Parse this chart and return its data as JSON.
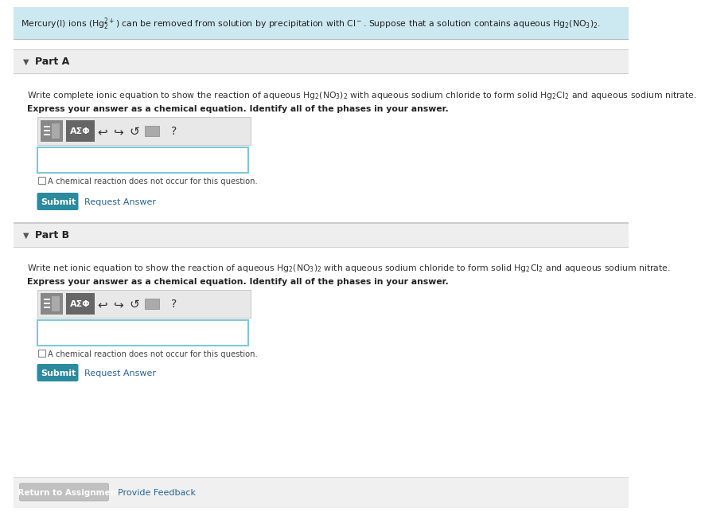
{
  "bg_color": "#ffffff",
  "header_bg": "#cce8f0",
  "header_text_plain": "Mercury(I) ions (",
  "header_text_formula1": "Hg",
  "header_text_mid": ") can be removed from solution by precipitation with Cl",
  "header_text_formula2": "Hg₂(NO₃)₂",
  "part_a_header_bg": "#eeeeee",
  "part_a_label": "Part A",
  "part_b_header_bg": "#eeeeee",
  "part_b_label": "Part B",
  "part_a_q1": "Write complete ionic equation to show the reaction of aqueous Hg₂(NO₃)₂ with aqueous sodium chloride to form solid Hg₂Cl₂ and aqueous sodium nitrate.",
  "part_a_q2": "Express your answer as a chemical equation. Identify all of the phases in your answer.",
  "part_b_q1": "Write net ionic equation to show the reaction of aqueous Hg₂(NO₃)₂ with aqueous sodium chloride to form solid Hg₂Cl₂ and aqueous sodium nitrate.",
  "part_b_q2": "Express your answer as a chemical equation. Identify all of the phases in your answer.",
  "submit_color": "#2b8a9e",
  "submit_text": "Submit",
  "request_answer_text": "Request Answer",
  "request_answer_color": "#2a6496",
  "checkbox_text": "A chemical reaction does not occur for this question.",
  "return_btn_text": "< Return to Assignment",
  "return_btn_bg": "#c0c0c0",
  "provide_feedback_text": "Provide Feedback",
  "input_border": "#7ec8d8",
  "section_divider": "#cccccc",
  "toolbar_outer_bg": "#e8e8e8",
  "btn1_bg": "#888888",
  "btn2_bg": "#666666"
}
